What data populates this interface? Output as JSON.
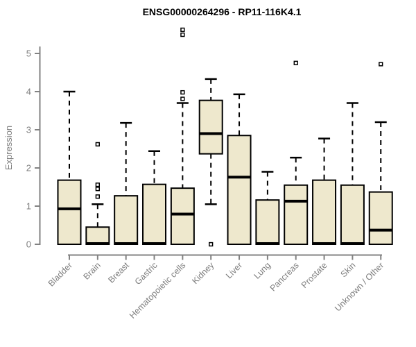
{
  "chart_data": {
    "type": "boxplot",
    "title": "ENSG00000264296 - RP11-116K4.1",
    "xlabel": "",
    "ylabel": "Expression",
    "ylim": [
      0,
      5
    ],
    "yticks": [
      0,
      1,
      2,
      3,
      4,
      5
    ],
    "grid": false,
    "legend": "none",
    "categories": [
      "Bladder",
      "Brain",
      "Breast",
      "Gastric",
      "Hematopoietic cells",
      "Kidney",
      "Liver",
      "Lung",
      "Pancreas",
      "Prostate",
      "Skin",
      "Unknown / Other"
    ],
    "series": [
      {
        "name": "Bladder",
        "low": 0,
        "q1": 0,
        "median": 0.93,
        "q3": 1.68,
        "high": 4.0,
        "outliers": []
      },
      {
        "name": "Brain",
        "low": 0,
        "q1": 0,
        "median": 0,
        "q3": 0.45,
        "high": 1.05,
        "outliers": [
          1.25,
          1.45,
          1.56,
          2.62
        ]
      },
      {
        "name": "Breast",
        "low": 0,
        "q1": 0,
        "median": 0,
        "q3": 1.27,
        "high": 3.18,
        "outliers": []
      },
      {
        "name": "Gastric",
        "low": 0,
        "q1": 0,
        "median": 0,
        "q3": 1.57,
        "high": 2.44,
        "outliers": []
      },
      {
        "name": "Hematopoietic cells",
        "low": 0,
        "q1": 0,
        "median": 0.79,
        "q3": 1.47,
        "high": 3.7,
        "outliers": [
          3.81,
          3.98,
          5.49,
          5.62
        ]
      },
      {
        "name": "Kidney",
        "low": 1.05,
        "q1": 2.37,
        "median": 2.9,
        "q3": 3.77,
        "high": 4.33,
        "outliers": [
          0
        ]
      },
      {
        "name": "Liver",
        "low": 0,
        "q1": 0,
        "median": 1.76,
        "q3": 2.85,
        "high": 3.93,
        "outliers": []
      },
      {
        "name": "Lung",
        "low": 0,
        "q1": 0,
        "median": 0,
        "q3": 1.16,
        "high": 1.9,
        "outliers": []
      },
      {
        "name": "Pancreas",
        "low": 0,
        "q1": 0,
        "median": 1.13,
        "q3": 1.55,
        "high": 2.27,
        "outliers": [
          4.75
        ]
      },
      {
        "name": "Prostate",
        "low": 0,
        "q1": 0,
        "median": 0,
        "q3": 1.68,
        "high": 2.77,
        "outliers": []
      },
      {
        "name": "Skin",
        "low": 0,
        "q1": 0,
        "median": 0,
        "q3": 1.55,
        "high": 3.7,
        "outliers": []
      },
      {
        "name": "Unknown / Other",
        "low": 0,
        "q1": 0,
        "median": 0.37,
        "q3": 1.37,
        "high": 3.2,
        "outliers": [
          4.72
        ]
      }
    ],
    "colors": {
      "box_fill": "#EEE8CD",
      "box_stroke": "#000000",
      "whisker": "#000000",
      "axis": "#828282",
      "tick_label": "#7e7e7e",
      "title": "#000000"
    }
  }
}
